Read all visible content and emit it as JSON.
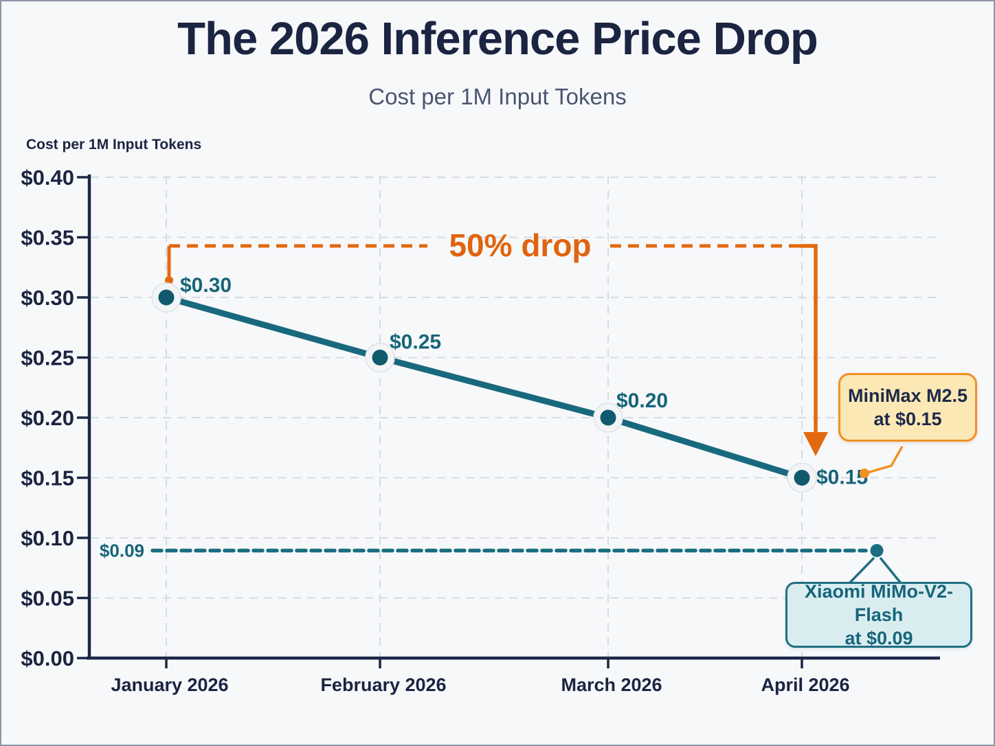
{
  "header": {
    "title": "The 2026 Inference Price Drop",
    "subtitle": "Cost per 1M Input Tokens"
  },
  "chart_data": {
    "type": "line",
    "title": "The 2026 Inference Price Drop",
    "subtitle": "Cost per 1M Input Tokens",
    "axis_title": "Cost per 1M Input Tokens",
    "categories": [
      "January 2026",
      "February 2026",
      "March 2026",
      "April 2026"
    ],
    "series": [
      {
        "name": "Cost per 1M input tokens",
        "values": [
          0.3,
          0.25,
          0.2,
          0.15
        ],
        "point_labels": [
          "$0.30",
          "$0.25",
          "$0.20",
          "$0.15"
        ],
        "color": "#19697e"
      }
    ],
    "baseline": {
      "value": 0.09,
      "label": "$0.09",
      "style": "dashed",
      "color": "#1b6e80"
    },
    "ylim": [
      0.0,
      0.4
    ],
    "ytick_step": 0.05,
    "ytick_labels": [
      "$0.00",
      "$0.05",
      "$0.10",
      "$0.15",
      "$0.20",
      "$0.25",
      "$0.30",
      "$0.35",
      "$0.40"
    ],
    "grid": true,
    "legend": "none",
    "annotations": [
      {
        "type": "range-arrow",
        "label": "50% drop",
        "from_category": "January 2026",
        "from_value": 0.3,
        "to_category": "April 2026",
        "to_value": 0.15,
        "color": "#e2690e"
      },
      {
        "type": "callout",
        "line1": "MiniMax M2.5",
        "line2": "at $0.15",
        "points_to_value": 0.15,
        "fill": "#fbe8b5",
        "border": "#f09122",
        "text_color": "#1d2a4a"
      },
      {
        "type": "callout",
        "line1": "Xiaomi MiMo-V2-Flash",
        "line2": "at $0.09",
        "points_to_value": 0.09,
        "fill": "#d9edf1",
        "border": "#1f7082",
        "text_color": "#176579"
      }
    ],
    "colors": {
      "title_text": "#1b2441",
      "subtitle_text": "#4a5570",
      "axis": "#1c2746",
      "gridline": "#d7dbe2",
      "series_teal": "#19697e",
      "point_fill": "#11596d",
      "point_ring": "#f2f4f6",
      "value_label_teal": "#176579",
      "annotation_orange": "#e2690e",
      "background": "#f7f8fa"
    }
  }
}
